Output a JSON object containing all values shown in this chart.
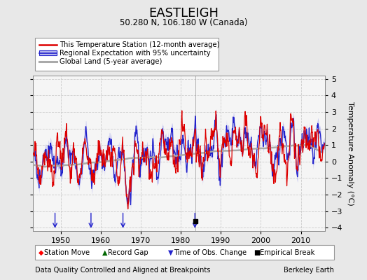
{
  "title": "EASTLEIGH",
  "subtitle": "50.280 N, 106.180 W (Canada)",
  "ylabel": "Temperature Anomaly (°C)",
  "footer_left": "Data Quality Controlled and Aligned at Breakpoints",
  "footer_right": "Berkeley Earth",
  "xlim": [
    1943,
    2016
  ],
  "ylim": [
    -4.2,
    5.2
  ],
  "yticks": [
    -4,
    -3,
    -2,
    -1,
    0,
    1,
    2,
    3,
    4,
    5
  ],
  "xticks": [
    1950,
    1960,
    1970,
    1980,
    1990,
    2000,
    2010
  ],
  "bg_color": "#e8e8e8",
  "plot_bg_color": "#f5f5f5",
  "grid_color": "#cccccc",
  "red_color": "#dd0000",
  "blue_color": "#2222cc",
  "uncertainty_color": "#bbbbee",
  "global_color": "#aaaaaa",
  "start_year": 1943,
  "end_year": 2015,
  "empirical_break_year": 1983.6,
  "time_of_obs_years": [
    1948.5,
    1957.5,
    1965.5,
    1983.5
  ],
  "red_spike_years": [
    1970.5,
    1983.2
  ],
  "blue_spike_years": [
    1948.0
  ]
}
